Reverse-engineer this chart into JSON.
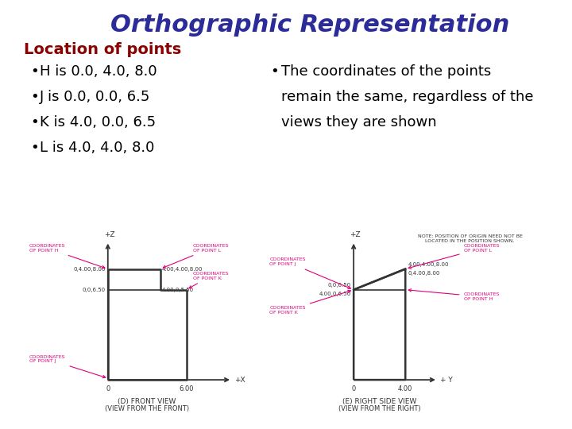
{
  "title": "Orthographic Representation",
  "subtitle": "Location of points",
  "title_color": "#2b2b9a",
  "subtitle_color": "#8b0000",
  "bg_color": "#ffffff",
  "bullet_items_left": [
    "H is 0.0, 4.0, 8.0",
    "J is 0.0, 0.0, 6.5",
    "K is 4.0, 0.0, 6.5",
    "L is 4.0, 4.0, 8.0"
  ],
  "bullet_items_right_line1": "The coordinates of the points",
  "bullet_items_right_line2": "remain the same, regardless of the",
  "bullet_items_right_line3": "views they are shown",
  "diagram_color": "#333333",
  "annotation_color": "#e0007f",
  "front_view_title": "(D) FRONT VIEW",
  "front_view_subtitle": "(VIEW FROM THE FRONT)",
  "side_view_title": "(E) RIGHT SIDE VIEW",
  "side_view_subtitle": "(VIEW FROM THE RIGHT)",
  "note_text": "NOTE: POSITION OF ORIGIN NEED NOT BE\nLOCATED IN THE POSITION SHOWN."
}
